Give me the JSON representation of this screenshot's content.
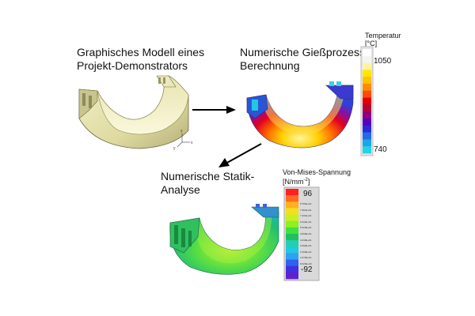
{
  "labels": {
    "model": "Graphisches Modell eines\nProjekt-Demonstrators",
    "casting": "Numerische Gießprozess-\nBerechnung",
    "statics": "Numerische Statik-\nAnalyse"
  },
  "temperature_scale": {
    "title": "Temperatur\n[°C]",
    "max": "1050",
    "min": "740",
    "colors": [
      "#ffffff",
      "#f4f4f4",
      "#fff3a0",
      "#ffe700",
      "#ffc000",
      "#ff8c00",
      "#ff4a00",
      "#e00000",
      "#b8003a",
      "#8a007a",
      "#5a00c0",
      "#2a2ad8",
      "#1e6ce8",
      "#1aa6e8",
      "#20d4e8"
    ]
  },
  "stress_scale": {
    "title": "Von-Mises-Spannung\n[N/mm",
    "title_sup": "-2",
    "title_end": "]",
    "max": "96",
    "min": "-92",
    "tick_labels": [
      "8.781E+01",
      "7.961E+01",
      "7.201E+01",
      "6.411E+01",
      "5.620E+01",
      "4.830E+01",
      "4.040E+01",
      "3.250E+01",
      "2.460E+01",
      "1.670E+01",
      "8.620E+00"
    ],
    "colors": [
      "#ff2020",
      "#ff6a20",
      "#ffb020",
      "#f0e020",
      "#c8f020",
      "#90f020",
      "#40e040",
      "#20c060",
      "#20d0b0",
      "#20c8e0",
      "#30a0f0",
      "#3060f0",
      "#4030e0",
      "#6020d0"
    ]
  },
  "axes_triad": {
    "z": "z",
    "x": "x",
    "y": "y"
  }
}
